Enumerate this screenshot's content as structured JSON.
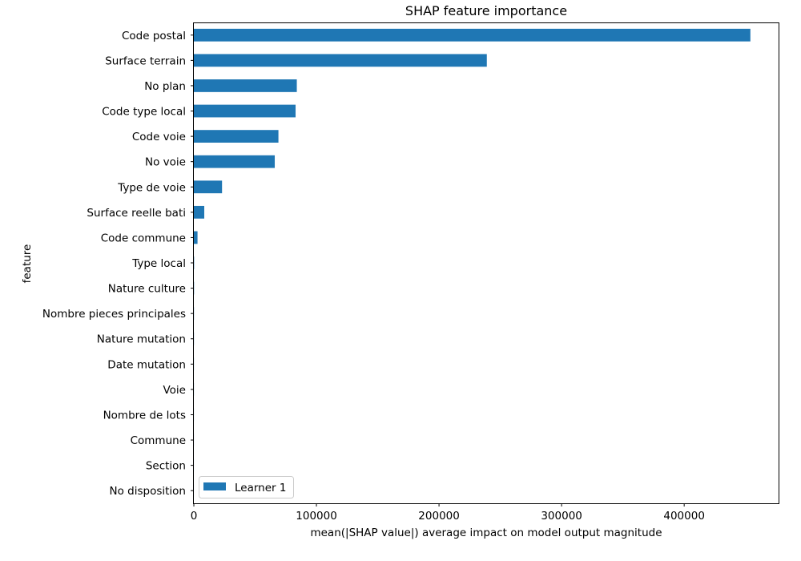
{
  "chart_data": {
    "type": "bar",
    "orientation": "horizontal",
    "title": "SHAP feature importance",
    "xlabel": "mean(|SHAP value|) average impact on model output magnitude",
    "ylabel": "feature",
    "xlim": [
      0,
      477000
    ],
    "xticks": [
      0,
      100000,
      200000,
      300000,
      400000
    ],
    "xtick_labels": [
      "0",
      "100000",
      "200000",
      "300000",
      "400000"
    ],
    "grid": false,
    "legend": "lower-left",
    "bar_color": "#1f77b4",
    "categories": [
      "Code postal",
      "Surface terrain",
      "No plan",
      "Code type local",
      "Code voie",
      "No voie",
      "Type de voie",
      "Surface reelle bati",
      "Code commune",
      "Type local",
      "Nature culture",
      "Nombre pieces principales",
      "Nature mutation",
      "Date mutation",
      "Voie",
      "Nombre de lots",
      "Commune",
      "Section",
      "No disposition"
    ],
    "series": [
      {
        "name": "Learner 1",
        "values": [
          454000,
          239000,
          84000,
          83000,
          69000,
          66000,
          23000,
          8500,
          3000,
          200,
          150,
          100,
          80,
          60,
          50,
          40,
          30,
          20,
          10
        ]
      }
    ]
  }
}
